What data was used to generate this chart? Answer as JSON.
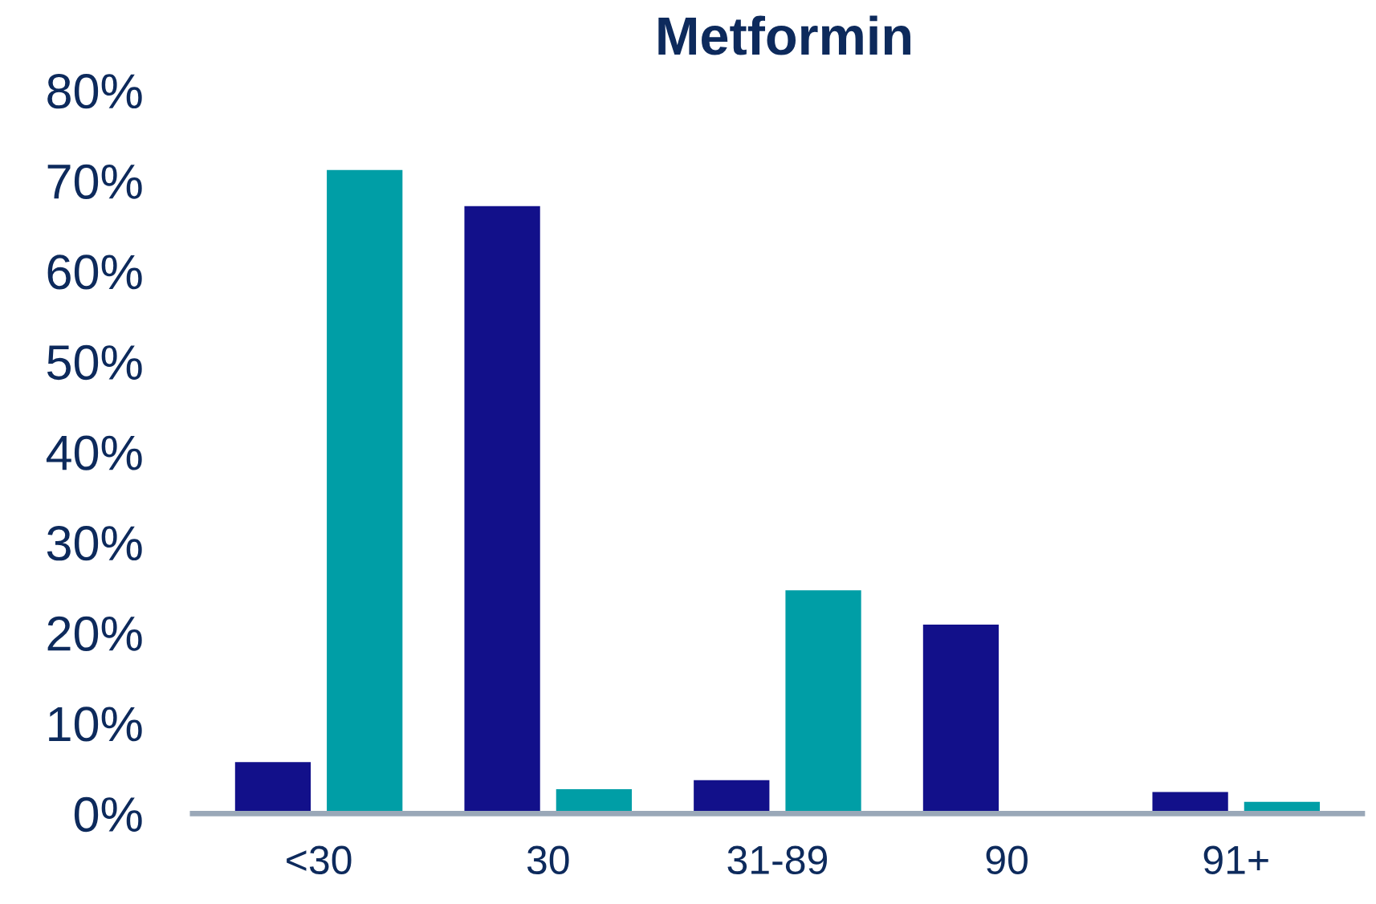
{
  "chart_data": {
    "type": "bar",
    "title": "Metformin",
    "categories": [
      "<30",
      "30",
      "31-89",
      "90",
      "91+"
    ],
    "series": [
      {
        "color": "#12108a",
        "values": [
          5.7,
          67.2,
          3.7,
          20.9,
          2.4
        ]
      },
      {
        "color": "#009ea6",
        "values": [
          71.2,
          2.7,
          24.7,
          0,
          1.3
        ]
      }
    ],
    "ylim": [
      0,
      80
    ],
    "yticks": [
      {
        "value": 0,
        "label": "0%"
      },
      {
        "value": 10,
        "label": "10%"
      },
      {
        "value": 20,
        "label": "20%"
      },
      {
        "value": 30,
        "label": "30%"
      },
      {
        "value": 40,
        "label": "40%"
      },
      {
        "value": 50,
        "label": "50%"
      },
      {
        "value": 60,
        "label": "60%"
      },
      {
        "value": 70,
        "label": "70%"
      },
      {
        "value": 80,
        "label": "80%"
      }
    ],
    "grid": false
  }
}
